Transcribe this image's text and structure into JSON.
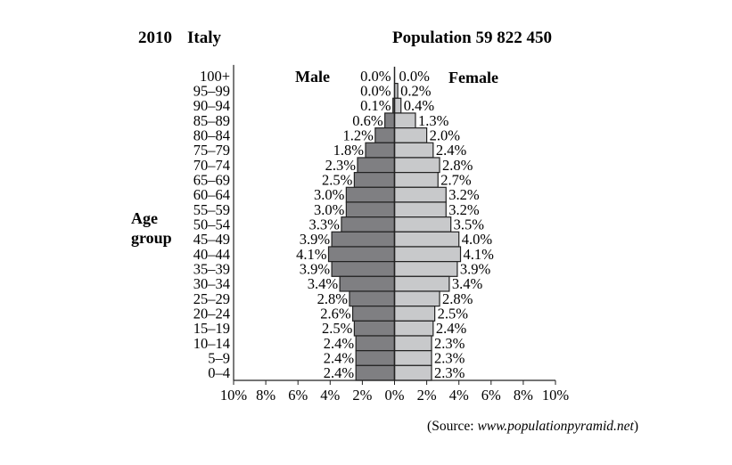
{
  "chart_data": {
    "type": "bar",
    "subtype": "population-pyramid",
    "year": "2010",
    "country": "Italy",
    "population_label": "Population 59 822 450",
    "ylabel_line1": "Age",
    "ylabel_line2": "group",
    "categories": [
      "100+",
      "95–99",
      "90–94",
      "85–89",
      "80–84",
      "75–79",
      "70–74",
      "65–69",
      "60–64",
      "55–59",
      "50–54",
      "45–49",
      "40–44",
      "35–39",
      "30–34",
      "25–29",
      "20–24",
      "15–19",
      "10–14",
      "5–9",
      "0–4"
    ],
    "series": [
      {
        "name": "Male",
        "color": "#7f7f82",
        "values": [
          0.0,
          0.0,
          0.1,
          0.6,
          1.2,
          1.8,
          2.3,
          2.5,
          3.0,
          3.0,
          3.3,
          3.9,
          4.1,
          3.9,
          3.4,
          2.8,
          2.6,
          2.5,
          2.4,
          2.4,
          2.4
        ]
      },
      {
        "name": "Female",
        "color": "#c8c9cb",
        "values": [
          0.0,
          0.2,
          0.4,
          1.3,
          2.0,
          2.4,
          2.8,
          2.7,
          3.2,
          3.2,
          3.5,
          4.0,
          4.1,
          3.9,
          3.4,
          2.8,
          2.5,
          2.4,
          2.3,
          2.3,
          2.3
        ]
      }
    ],
    "data_labels_male": [
      "0.0%",
      "0.0%",
      "0.1%",
      "0.6%",
      "1.2%",
      "1.8%",
      "2.3%",
      "2.5%",
      "3.0%",
      "3.0%",
      "3.3%",
      "3.9%",
      "4.1%",
      "3.9%",
      "3.4%",
      "2.8%",
      "2.6%",
      "2.5%",
      "2.4%",
      "2.4%",
      "2.4%"
    ],
    "data_labels_female": [
      "0.0%",
      "0.2%",
      "0.4%",
      "1.3%",
      "2.0%",
      "2.4%",
      "2.8%",
      "2.7%",
      "3.2%",
      "3.2%",
      "3.5%",
      "4.0%",
      "4.1%",
      "3.9%",
      "3.4%",
      "2.8%",
      "2.5%",
      "2.4%",
      "2.3%",
      "2.3%",
      "2.3%"
    ],
    "xlim": [
      -10,
      10
    ],
    "xticks": [
      -10,
      -8,
      -6,
      -4,
      -2,
      0,
      2,
      4,
      6,
      8,
      10
    ],
    "xtick_labels": [
      "10%",
      "8%",
      "6%",
      "4%",
      "2%",
      "0%",
      "2%",
      "4%",
      "6%",
      "8%",
      "10%"
    ],
    "grid": false,
    "source_prefix": "(Source: ",
    "source_url": "www.populationpyramid.net",
    "source_suffix": ")"
  }
}
